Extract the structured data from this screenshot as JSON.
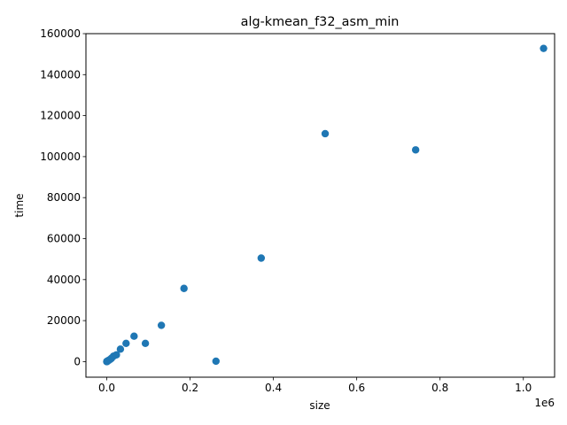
{
  "chart_data": {
    "type": "scatter",
    "title": "alg-kmean_f32_asm_min",
    "xlabel": "size",
    "ylabel": "time",
    "x_offset_label": "1e6",
    "xlim": [
      -50000,
      1075000
    ],
    "ylim": [
      -7600,
      160000
    ],
    "x_ticks": [
      0,
      200000,
      400000,
      600000,
      800000,
      1000000
    ],
    "x_tick_labels": [
      "0.0",
      "0.2",
      "0.4",
      "0.6",
      "0.8",
      "1.0"
    ],
    "y_ticks": [
      0,
      20000,
      40000,
      60000,
      80000,
      100000,
      120000,
      140000,
      160000
    ],
    "y_tick_labels": [
      "0",
      "20000",
      "40000",
      "60000",
      "80000",
      "100000",
      "120000",
      "140000",
      "160000"
    ],
    "marker_color": "#1f77b4",
    "grid": false,
    "legend": "none",
    "points": [
      {
        "x": 64,
        "y": 10
      },
      {
        "x": 128,
        "y": 20
      },
      {
        "x": 256,
        "y": 40
      },
      {
        "x": 512,
        "y": 80
      },
      {
        "x": 1024,
        "y": 160
      },
      {
        "x": 2048,
        "y": 300
      },
      {
        "x": 4096,
        "y": 550
      },
      {
        "x": 8192,
        "y": 1100
      },
      {
        "x": 11585,
        "y": 1700
      },
      {
        "x": 16384,
        "y": 2700
      },
      {
        "x": 23170,
        "y": 3300
      },
      {
        "x": 32768,
        "y": 6100
      },
      {
        "x": 46341,
        "y": 8900
      },
      {
        "x": 65536,
        "y": 12400
      },
      {
        "x": 92682,
        "y": 8900
      },
      {
        "x": 131072,
        "y": 17700
      },
      {
        "x": 185364,
        "y": 35700
      },
      {
        "x": 262144,
        "y": 200
      },
      {
        "x": 370728,
        "y": 50500
      },
      {
        "x": 524288,
        "y": 111200
      },
      {
        "x": 741455,
        "y": 103300
      },
      {
        "x": 1048576,
        "y": 152800
      }
    ]
  }
}
